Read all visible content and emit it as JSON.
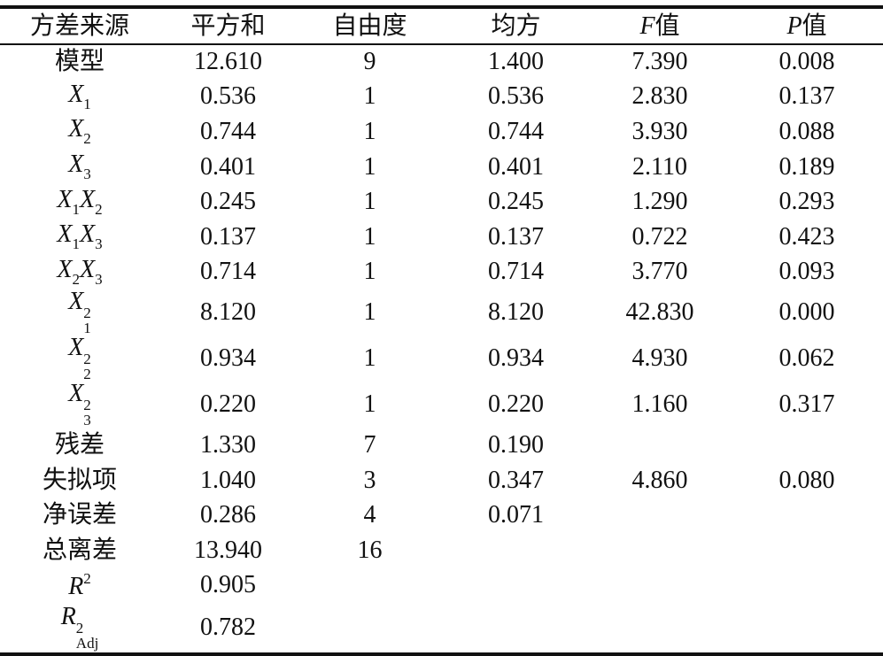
{
  "table": {
    "header": [
      [
        {
          "text": "方差来源"
        }
      ],
      [
        {
          "text": "平方和"
        }
      ],
      [
        {
          "text": "自由度"
        }
      ],
      [
        {
          "text": "均方"
        }
      ],
      [
        {
          "text": "F",
          "italic": true
        },
        {
          "text": "值"
        }
      ],
      [
        {
          "text": "P",
          "italic": true
        },
        {
          "text": "值"
        }
      ]
    ],
    "rows": [
      {
        "source": [
          {
            "text": "模型"
          }
        ],
        "cells": [
          "12.610",
          "9",
          "1.400",
          "7.390",
          "0.008"
        ]
      },
      {
        "source": [
          {
            "text": "X",
            "italic": true,
            "sub": "1"
          }
        ],
        "cells": [
          "0.536",
          "1",
          "0.536",
          "2.830",
          "0.137"
        ]
      },
      {
        "source": [
          {
            "text": "X",
            "italic": true,
            "sub": "2"
          }
        ],
        "cells": [
          "0.744",
          "1",
          "0.744",
          "3.930",
          "0.088"
        ]
      },
      {
        "source": [
          {
            "text": "X",
            "italic": true,
            "sub": "3"
          }
        ],
        "cells": [
          "0.401",
          "1",
          "0.401",
          "2.110",
          "0.189"
        ]
      },
      {
        "source": [
          {
            "text": "X",
            "italic": true,
            "sub": "1"
          },
          {
            "text": "X",
            "italic": true,
            "sub": "2"
          }
        ],
        "cells": [
          "0.245",
          "1",
          "0.245",
          "1.290",
          "0.293"
        ]
      },
      {
        "source": [
          {
            "text": "X",
            "italic": true,
            "sub": "1"
          },
          {
            "text": "X",
            "italic": true,
            "sub": "3"
          }
        ],
        "cells": [
          "0.137",
          "1",
          "0.137",
          "0.722",
          "0.423"
        ]
      },
      {
        "source": [
          {
            "text": "X",
            "italic": true,
            "sub": "2"
          },
          {
            "text": "X",
            "italic": true,
            "sub": "3"
          }
        ],
        "cells": [
          "0.714",
          "1",
          "0.714",
          "3.770",
          "0.093"
        ]
      },
      {
        "source": [
          {
            "text": "X",
            "italic": true,
            "sub": "1",
            "sup": "2"
          }
        ],
        "cells": [
          "8.120",
          "1",
          "8.120",
          "42.830",
          "0.000"
        ]
      },
      {
        "source": [
          {
            "text": "X",
            "italic": true,
            "sub": "2",
            "sup": "2"
          }
        ],
        "cells": [
          "0.934",
          "1",
          "0.934",
          "4.930",
          "0.062"
        ]
      },
      {
        "source": [
          {
            "text": "X",
            "italic": true,
            "sub": "3",
            "sup": "2"
          }
        ],
        "cells": [
          "0.220",
          "1",
          "0.220",
          "1.160",
          "0.317"
        ]
      },
      {
        "source": [
          {
            "text": "残差"
          }
        ],
        "cells": [
          "1.330",
          "7",
          "0.190",
          null,
          null
        ]
      },
      {
        "source": [
          {
            "text": "失拟项"
          }
        ],
        "cells": [
          "1.040",
          "3",
          "0.347",
          "4.860",
          "0.080"
        ]
      },
      {
        "source": [
          {
            "text": "净误差"
          }
        ],
        "cells": [
          "0.286",
          "4",
          "0.071",
          null,
          null
        ]
      },
      {
        "source": [
          {
            "text": "总离差"
          }
        ],
        "cells": [
          "13.940",
          "16",
          null,
          null,
          null
        ]
      },
      {
        "source": [
          {
            "text": "R",
            "italic": true,
            "sup": "2"
          }
        ],
        "cells": [
          "0.905",
          null,
          null,
          null,
          null
        ]
      },
      {
        "source": [
          {
            "text": "R",
            "italic": true,
            "sub": "Adj",
            "sup": "2"
          }
        ],
        "cells": [
          "0.782",
          null,
          null,
          null,
          null
        ]
      }
    ]
  }
}
